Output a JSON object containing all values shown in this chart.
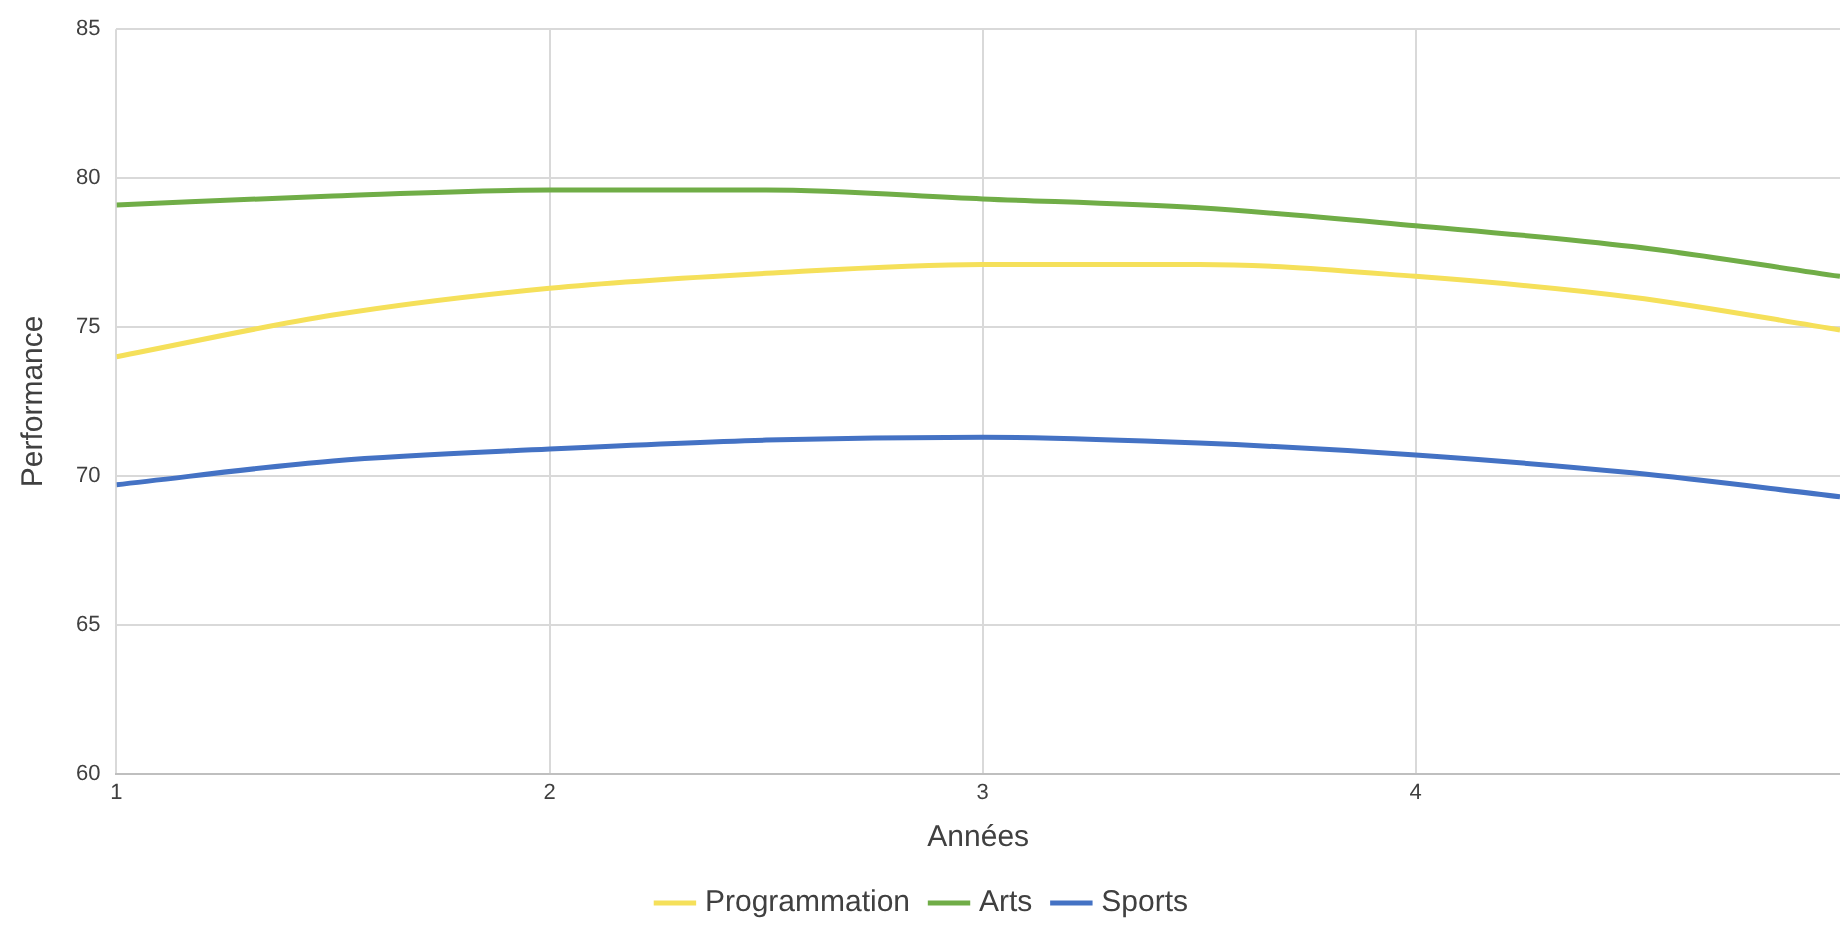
{
  "chart_data": {
    "type": "line",
    "xlabel": "Années",
    "ylabel": "Performance",
    "x": [
      1,
      1.5,
      2,
      2.5,
      3,
      3.5,
      4,
      4.5,
      4.98
    ],
    "series": [
      {
        "name": "Programmation",
        "color": "#f5e05a",
        "values": [
          74.0,
          75.4,
          76.3,
          76.8,
          77.1,
          77.1,
          76.7,
          76.0,
          74.9
        ]
      },
      {
        "name": "Arts",
        "color": "#70ad47",
        "values": [
          79.1,
          79.4,
          79.6,
          79.6,
          79.3,
          79.0,
          78.4,
          77.7,
          76.7
        ]
      },
      {
        "name": "Sports",
        "color": "#4472c4",
        "values": [
          69.7,
          70.5,
          70.9,
          71.2,
          71.3,
          71.1,
          70.7,
          70.1,
          69.3
        ]
      }
    ],
    "xlim": [
      1,
      4.98
    ],
    "xticks": [
      1,
      2,
      3,
      4
    ],
    "ylim": [
      60,
      85
    ],
    "yticks": [
      60,
      65,
      70,
      75,
      80,
      85
    ],
    "grid": true,
    "legend": "bottom",
    "marker": "none",
    "line_style": "solid"
  }
}
